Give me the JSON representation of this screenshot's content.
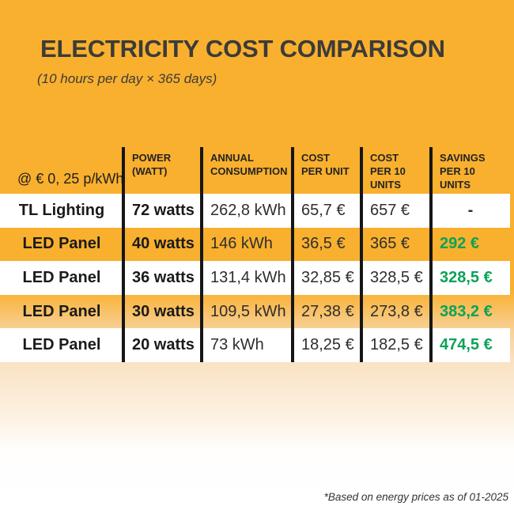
{
  "title": "ELECTRICITY COST COMPARISON",
  "subtitle": "(10 hours per day × 365 days)",
  "footnote": "*Based on energy prices as of 01-2025",
  "colors": {
    "background_orange": "#F9B02E",
    "savings_green": "#0CA258",
    "line_black": "#161616",
    "text_dark": "#2E2E2E"
  },
  "chart_data": {
    "type": "table",
    "title": "ELECTRICITY COST COMPARISON",
    "subtitle": "(10 hours per day × 365 days)",
    "rate_label": "@ € 0, 25 p/kWh",
    "columns": [
      "POWER\n(WATT)",
      "ANNUAL\nCONSUMPTION",
      "COST\nPER UNIT",
      "COST\nPER 10\nUNITS",
      "SAVINGS\nPER 10\nUNITS"
    ],
    "rows": [
      {
        "label": "TL Lighting",
        "power": "72 watts",
        "consumption": "262,8 kWh",
        "cost_per_unit": "65,7 €",
        "cost_per_10": "657 €",
        "savings": "-"
      },
      {
        "label": "LED Panel",
        "power": "40 watts",
        "consumption": "146 kWh",
        "cost_per_unit": "36,5 €",
        "cost_per_10": "365 €",
        "savings": "292 €"
      },
      {
        "label": "LED Panel",
        "power": "36 watts",
        "consumption": "131,4 kWh",
        "cost_per_unit": "32,85 €",
        "cost_per_10": "328,5 €",
        "savings": "328,5 €"
      },
      {
        "label": "LED Panel",
        "power": "30 watts",
        "consumption": "109,5 kWh",
        "cost_per_unit": "27,38 €",
        "cost_per_10": "273,8 €",
        "savings": "383,2 €"
      },
      {
        "label": "LED Panel",
        "power": "20 watts",
        "consumption": "73 kWh",
        "cost_per_unit": "18,25 €",
        "cost_per_10": "182,5 €",
        "savings": "474,5 €"
      }
    ]
  }
}
